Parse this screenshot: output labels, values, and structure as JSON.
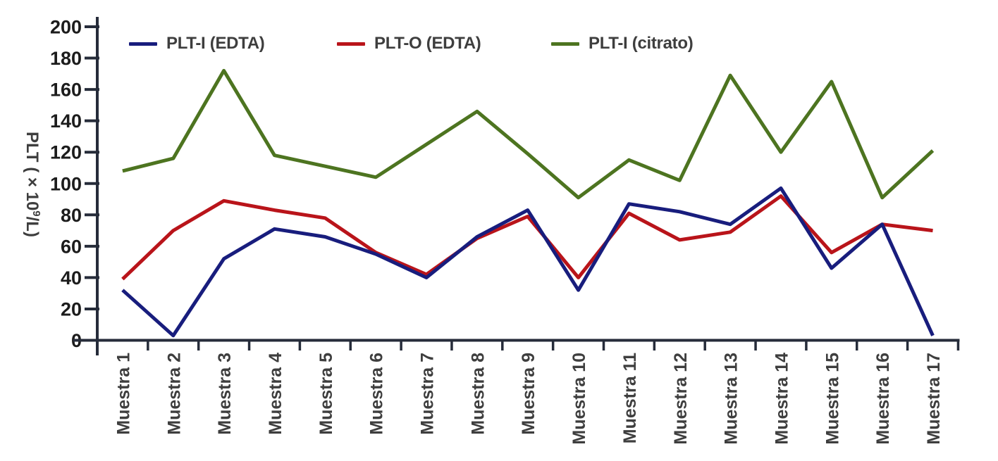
{
  "figure": {
    "background": "#ffffff"
  },
  "chart_data": {
    "type": "line",
    "title": "",
    "xlabel": "",
    "ylabel": "PLT ( × 10⁹/L)",
    "ylabel_parts": {
      "prefix": "PLT ( × 10",
      "superscript": "9",
      "suffix": "/L)"
    },
    "categories": [
      "Muestra 1",
      "Muestra 2",
      "Muestra 3",
      "Muestra 4",
      "Muestra 5",
      "Muestra 6",
      "Muestra 7",
      "Muestra 8",
      "Muestra 9",
      "Muestra 10",
      "Muestra 11",
      "Muestra 12",
      "Muestra 13",
      "Muestra 14",
      "Muestra 15",
      "Muestra 16",
      "Muestra 17"
    ],
    "series": [
      {
        "name": "PLT-I (EDTA)",
        "color": "#181d7d",
        "values": [
          32,
          3,
          52,
          71,
          66,
          55,
          40,
          66,
          83,
          32,
          87,
          82,
          74,
          97,
          46,
          74,
          3
        ]
      },
      {
        "name": "PLT-O (EDTA)",
        "color": "#b9141a",
        "values": [
          39,
          70,
          89,
          83,
          78,
          56,
          42,
          65,
          79,
          40,
          81,
          64,
          69,
          92,
          56,
          74,
          70
        ]
      },
      {
        "name": "PLT-I (citrato)",
        "color": "#4d7420",
        "values": [
          108,
          116,
          172,
          118,
          111,
          104,
          125,
          146,
          119,
          91,
          115,
          102,
          169,
          120,
          165,
          91,
          121
        ]
      }
    ],
    "ylim": [
      0,
      200
    ],
    "yticks": [
      0,
      20,
      40,
      60,
      80,
      100,
      120,
      140,
      160,
      180,
      200
    ],
    "grid": false,
    "legend_position": "top",
    "axis_color": "#262c3a",
    "ytick_label_color": "#1c1c1c",
    "category_label_color": "#3e3e3e"
  }
}
